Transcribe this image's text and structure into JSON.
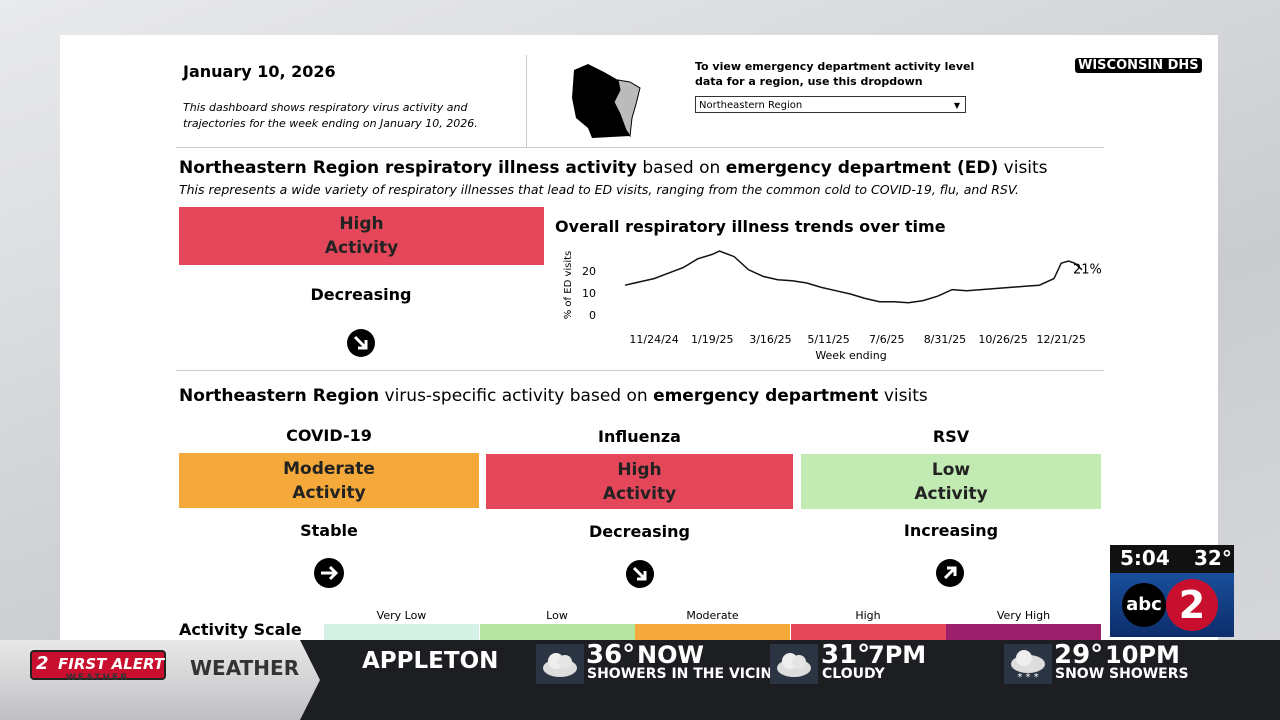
{
  "header": {
    "date": "January 10, 2026",
    "description": "This dashboard shows respiratory virus activity and trajectories for the week ending on January 10, 2026.",
    "dropdown_prompt": "To view emergency department activity level data for a region, use this dropdown",
    "dropdown_value": "Northeastern Region",
    "brand": "WISCONSIN DHS"
  },
  "overall": {
    "heading_region": "Northeastern Region respiratory illness activity",
    "heading_mid": "based on",
    "heading_bold": "emergency department (ED)",
    "heading_end": "visits",
    "subtitle": "This represents a wide variety of respiratory illnesses that lead to ED visits, ranging from the common cold to COVID-19, flu, and RSV.",
    "level": [
      "High",
      "Activity"
    ],
    "trend": "Decreasing"
  },
  "chart_data": {
    "type": "line",
    "title": "Overall respiratory illness trends over time",
    "xlabel": "Week ending",
    "ylabel": "% of ED visits",
    "color": "#111111",
    "x": [
      "10/27/24",
      "11/10/24",
      "11/24/24",
      "12/8/24",
      "12/22/24",
      "1/5/25",
      "1/19/25",
      "1/26/25",
      "2/9/25",
      "2/23/25",
      "3/9/25",
      "3/23/25",
      "4/6/25",
      "4/20/25",
      "5/4/25",
      "5/18/25",
      "6/1/25",
      "6/15/25",
      "6/29/25",
      "7/13/25",
      "7/27/25",
      "8/10/25",
      "8/24/25",
      "9/7/25",
      "9/21/25",
      "10/5/25",
      "10/19/25",
      "11/2/25",
      "11/16/25",
      "11/30/25",
      "12/14/25",
      "12/21/25",
      "12/28/25",
      "1/3/26",
      "1/10/26"
    ],
    "values": [
      14,
      15.5,
      17,
      19.5,
      22,
      26,
      28,
      29.5,
      27,
      21,
      18,
      16.5,
      16,
      15,
      13,
      11.5,
      10,
      8,
      6.5,
      6.5,
      6,
      7,
      9,
      12,
      11.5,
      12,
      12.5,
      13,
      13.5,
      14,
      17,
      24,
      25,
      24,
      21
    ],
    "value_labels": [
      null,
      null,
      null,
      null,
      null,
      null,
      null,
      null,
      null,
      null,
      null,
      null,
      null,
      null,
      null,
      null,
      null,
      null,
      null,
      null,
      null,
      null,
      null,
      null,
      null,
      null,
      null,
      null,
      null,
      null,
      null,
      null,
      null,
      null,
      "21%"
    ],
    "xlim": [
      "10/27/24",
      "1/10/26"
    ],
    "xticks": [
      "11/24/24",
      "1/19/25",
      "3/16/25",
      "5/11/25",
      "7/6/25",
      "8/31/25",
      "10/26/25",
      "12/21/25"
    ],
    "ylim": [
      0,
      30
    ],
    "yticks": [
      0,
      10,
      20
    ],
    "grid": false
  },
  "virus": {
    "heading_region": "Northeastern Region",
    "heading_mid": "virus-specific activity based on",
    "heading_bold": "emergency department",
    "heading_end": "visits",
    "items": [
      {
        "name": "COVID-19",
        "level": [
          "Moderate",
          "Activity"
        ],
        "trend": "Stable"
      },
      {
        "name": "Influenza",
        "level": [
          "High",
          "Activity"
        ],
        "trend": "Decreasing"
      },
      {
        "name": "RSV",
        "level": [
          "Low",
          "Activity"
        ],
        "trend": "Increasing"
      }
    ]
  },
  "scale": {
    "title": "Activity Scale",
    "levels": [
      "Very Low",
      "Low",
      "Moderate",
      "High",
      "Very High"
    ]
  },
  "ticker": {
    "channel": "2",
    "logo": "FIRST ALERT",
    "logo_sub": "WEATHER",
    "segment": "WEATHER",
    "city": "APPLETON",
    "time": "5:04",
    "temp": "32°",
    "station": "abc",
    "items": [
      {
        "temp": "36°",
        "label": "NOW",
        "desc": "SHOWERS IN THE VICINITY"
      },
      {
        "temp": "31°",
        "label": "7PM",
        "desc": "CLOUDY"
      },
      {
        "temp": "29°",
        "label": "10PM",
        "desc": "SNOW SHOWERS"
      }
    ]
  }
}
